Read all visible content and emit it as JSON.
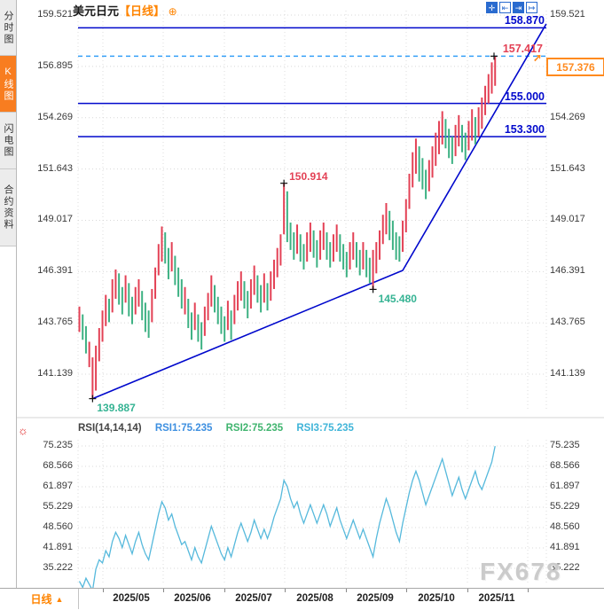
{
  "header": {
    "symbol": "美元日元",
    "period_tag": "【日线】",
    "expand_icon": "⊕",
    "toolbar": [
      {
        "name": "crosshair",
        "glyph": "✛"
      },
      {
        "name": "compress-axis",
        "glyph": "⇤"
      },
      {
        "name": "expand-axis",
        "glyph": "⇥"
      },
      {
        "name": "pan-right",
        "glyph": "↦"
      }
    ]
  },
  "sidebar": {
    "tabs": [
      {
        "label": "分时图",
        "active": false
      },
      {
        "label": "K线图",
        "active": true
      },
      {
        "label": "闪电图",
        "active": false
      },
      {
        "label": "合约资料",
        "active": false
      }
    ]
  },
  "bottom_bar": {
    "period_label": "日线",
    "period_arrow": "▲"
  },
  "watermark": "FX678",
  "colors": {
    "accent_orange": "#ff8400",
    "tab_orange": "#f87d20",
    "line_blue": "#0008cc",
    "dashed_cyan": "#36a0f8",
    "label_red": "#e34155",
    "label_teal": "#35b393",
    "candle_up": "#e34155",
    "candle_down": "#3db183",
    "rsi_line": "#56b9dc",
    "price_box_orange": "#ff8a1e"
  },
  "chart_data": [
    {
      "type": "candlestick",
      "title": "美元日元 日线",
      "y_ticks": [
        159.521,
        156.895,
        154.269,
        151.643,
        149.017,
        146.391,
        143.765,
        141.139
      ],
      "y_ticks_right": [
        159.521,
        154.269,
        151.643,
        149.017,
        146.391,
        143.765,
        141.139
      ],
      "x_ticks": [
        "2025/05",
        "2025/06",
        "2025/07",
        "2025/08",
        "2025/09",
        "2025/10",
        "2025/11"
      ],
      "ylim": [
        140.2,
        159.8
      ],
      "grid": true,
      "hlines": [
        {
          "price": 158.87,
          "label": "158.870",
          "style": "solid",
          "color_role": "blue"
        },
        {
          "price": 157.417,
          "label": "157.417",
          "style": "dashed",
          "color_role": "red"
        },
        {
          "price": 155.0,
          "label": "155.000",
          "style": "solid",
          "color_role": "blue"
        },
        {
          "price": 153.3,
          "label": "153.300",
          "style": "solid",
          "color_role": "blue"
        }
      ],
      "current_price": "157.376",
      "annotations": [
        {
          "label": "150.914",
          "index": 62,
          "price": 150.914,
          "color_role": "red"
        },
        {
          "label": "145.480",
          "index": 89,
          "price": 145.48,
          "color_role": "teal"
        },
        {
          "label": "139.887",
          "index": 4,
          "price": 139.887,
          "color_role": "teal"
        }
      ],
      "trendline_points": [
        {
          "index": 4,
          "price": 139.887
        },
        {
          "index": 98,
          "price": 146.45
        },
        {
          "index": 141.5,
          "price": 159.07
        }
      ],
      "candles_hl": [
        [
          144.6,
          143.3,
          "r"
        ],
        [
          144.2,
          142.9,
          "g"
        ],
        [
          143.6,
          142.2,
          "g"
        ],
        [
          142.8,
          141.5,
          "r"
        ],
        [
          142.0,
          139.887,
          "r"
        ],
        [
          142.6,
          140.3,
          "r"
        ],
        [
          143.5,
          141.8,
          "r"
        ],
        [
          144.4,
          142.8,
          "r"
        ],
        [
          145.2,
          143.6,
          "r"
        ],
        [
          145.0,
          143.8,
          "g"
        ],
        [
          146.0,
          144.3,
          "r"
        ],
        [
          146.5,
          145.0,
          "r"
        ],
        [
          146.3,
          144.7,
          "g"
        ],
        [
          145.6,
          144.2,
          "g"
        ],
        [
          146.2,
          144.8,
          "r"
        ],
        [
          145.8,
          144.1,
          "g"
        ],
        [
          145.1,
          143.7,
          "g"
        ],
        [
          145.6,
          144.2,
          "r"
        ],
        [
          146.0,
          144.6,
          "r"
        ],
        [
          145.4,
          143.9,
          "g"
        ],
        [
          144.8,
          143.3,
          "g"
        ],
        [
          144.4,
          143.0,
          "g"
        ],
        [
          145.5,
          143.8,
          "r"
        ],
        [
          146.6,
          145.0,
          "r"
        ],
        [
          147.8,
          146.2,
          "r"
        ],
        [
          148.7,
          146.9,
          "r"
        ],
        [
          148.4,
          146.8,
          "g"
        ],
        [
          147.6,
          146.0,
          "g"
        ],
        [
          147.9,
          146.4,
          "r"
        ],
        [
          147.2,
          145.7,
          "g"
        ],
        [
          146.6,
          145.1,
          "g"
        ],
        [
          146.0,
          144.5,
          "g"
        ],
        [
          145.6,
          144.2,
          "r"
        ],
        [
          145.0,
          143.5,
          "g"
        ],
        [
          144.3,
          142.9,
          "g"
        ],
        [
          144.8,
          143.4,
          "r"
        ],
        [
          144.2,
          142.8,
          "g"
        ],
        [
          143.8,
          142.4,
          "g"
        ],
        [
          144.6,
          143.1,
          "r"
        ],
        [
          145.3,
          143.9,
          "r"
        ],
        [
          146.2,
          144.6,
          "r"
        ],
        [
          145.7,
          144.3,
          "g"
        ],
        [
          145.1,
          143.7,
          "g"
        ],
        [
          144.6,
          143.2,
          "g"
        ],
        [
          144.1,
          142.8,
          "g"
        ],
        [
          144.9,
          143.4,
          "r"
        ],
        [
          144.4,
          142.9,
          "g"
        ],
        [
          145.2,
          143.7,
          "r"
        ],
        [
          145.9,
          144.4,
          "r"
        ],
        [
          146.4,
          144.9,
          "r"
        ],
        [
          145.9,
          144.5,
          "g"
        ],
        [
          145.4,
          144.0,
          "g"
        ],
        [
          146.0,
          144.5,
          "r"
        ],
        [
          146.7,
          145.2,
          "r"
        ],
        [
          146.2,
          144.8,
          "g"
        ],
        [
          145.7,
          144.3,
          "g"
        ],
        [
          146.3,
          144.8,
          "r"
        ],
        [
          145.8,
          144.4,
          "g"
        ],
        [
          146.4,
          144.9,
          "r"
        ],
        [
          147.0,
          145.5,
          "r"
        ],
        [
          147.6,
          146.1,
          "r"
        ],
        [
          148.3,
          146.7,
          "r"
        ],
        [
          150.914,
          148.3,
          "r"
        ],
        [
          150.5,
          147.9,
          "g"
        ],
        [
          148.9,
          147.5,
          "g"
        ],
        [
          148.4,
          147.0,
          "g"
        ],
        [
          148.8,
          147.3,
          "r"
        ],
        [
          148.3,
          146.9,
          "g"
        ],
        [
          147.8,
          146.5,
          "g"
        ],
        [
          148.4,
          146.9,
          "r"
        ],
        [
          148.9,
          147.4,
          "r"
        ],
        [
          148.5,
          147.1,
          "g"
        ],
        [
          148.0,
          146.6,
          "g"
        ],
        [
          148.5,
          147.0,
          "r"
        ],
        [
          148.9,
          147.5,
          "r"
        ],
        [
          148.4,
          147.0,
          "g"
        ],
        [
          147.9,
          146.6,
          "g"
        ],
        [
          148.3,
          146.9,
          "r"
        ],
        [
          148.8,
          147.4,
          "r"
        ],
        [
          148.3,
          146.9,
          "g"
        ],
        [
          147.8,
          146.5,
          "g"
        ],
        [
          147.4,
          146.1,
          "g"
        ],
        [
          147.9,
          146.5,
          "r"
        ],
        [
          148.4,
          147.0,
          "r"
        ],
        [
          147.9,
          146.6,
          "g"
        ],
        [
          147.5,
          146.2,
          "g"
        ],
        [
          147.9,
          146.5,
          "r"
        ],
        [
          147.5,
          146.1,
          "g"
        ],
        [
          147.1,
          145.8,
          "g"
        ],
        [
          147.5,
          145.48,
          "r"
        ],
        [
          147.9,
          146.3,
          "r"
        ],
        [
          148.5,
          147.0,
          "r"
        ],
        [
          149.3,
          147.8,
          "r"
        ],
        [
          149.9,
          148.3,
          "r"
        ],
        [
          149.5,
          148.0,
          "g"
        ],
        [
          149.0,
          147.5,
          "g"
        ],
        [
          148.4,
          147.0,
          "g"
        ],
        [
          148.2,
          146.9,
          "g"
        ],
        [
          149.0,
          147.4,
          "r"
        ],
        [
          150.1,
          148.4,
          "r"
        ],
        [
          151.4,
          149.6,
          "r"
        ],
        [
          152.5,
          150.7,
          "r"
        ],
        [
          153.2,
          151.4,
          "r"
        ],
        [
          152.8,
          151.0,
          "g"
        ],
        [
          152.2,
          150.6,
          "g"
        ],
        [
          151.6,
          150.1,
          "g"
        ],
        [
          152.1,
          150.5,
          "r"
        ],
        [
          152.8,
          151.2,
          "r"
        ],
        [
          153.5,
          151.8,
          "r"
        ],
        [
          154.1,
          152.4,
          "r"
        ],
        [
          154.6,
          152.9,
          "r"
        ],
        [
          154.2,
          152.7,
          "g"
        ],
        [
          153.7,
          152.2,
          "g"
        ],
        [
          153.3,
          151.9,
          "g"
        ],
        [
          153.9,
          152.3,
          "r"
        ],
        [
          154.4,
          152.8,
          "r"
        ],
        [
          153.9,
          152.5,
          "g"
        ],
        [
          153.5,
          152.1,
          "g"
        ],
        [
          154.1,
          152.6,
          "r"
        ],
        [
          154.7,
          153.1,
          "r"
        ],
        [
          154.3,
          152.9,
          "g"
        ],
        [
          154.8,
          153.3,
          "r"
        ],
        [
          155.3,
          153.7,
          "r"
        ],
        [
          155.9,
          154.4,
          "r"
        ],
        [
          156.5,
          155.0,
          "r"
        ],
        [
          157.1,
          155.5,
          "r"
        ],
        [
          157.417,
          155.9,
          "r"
        ]
      ]
    },
    {
      "type": "line",
      "title": "RSI(14,14,14)",
      "legend": [
        {
          "label": "RSI1:75.235",
          "color": "#3d8fe0"
        },
        {
          "label": "RSI2:75.235",
          "color": "#3fb46e"
        },
        {
          "label": "RSI3:75.235",
          "color": "#3fb4d8"
        }
      ],
      "y_ticks": [
        75.235,
        68.566,
        61.897,
        55.229,
        48.56,
        41.891,
        35.222
      ],
      "ylim": [
        28,
        78
      ],
      "values": [
        31,
        29,
        32,
        30,
        28,
        35,
        38,
        37,
        41,
        39,
        44,
        47,
        45,
        42,
        46,
        43,
        40,
        44,
        47,
        43,
        40,
        38,
        43,
        48,
        53,
        57,
        55,
        51,
        53,
        49,
        46,
        43,
        44,
        41,
        38,
        42,
        39,
        37,
        41,
        45,
        49,
        46,
        43,
        40,
        38,
        42,
        39,
        43,
        47,
        50,
        47,
        44,
        47,
        51,
        48,
        45,
        48,
        45,
        48,
        52,
        55,
        58,
        64,
        62,
        58,
        55,
        57,
        53,
        50,
        53,
        56,
        53,
        50,
        53,
        56,
        53,
        49,
        52,
        55,
        51,
        48,
        45,
        48,
        51,
        48,
        45,
        48,
        45,
        42,
        39,
        45,
        50,
        54,
        58,
        55,
        51,
        47,
        44,
        50,
        55,
        60,
        64,
        67,
        64,
        60,
        56,
        59,
        62,
        65,
        68,
        71,
        67,
        63,
        59,
        62,
        65,
        61,
        58,
        61,
        64,
        67,
        63,
        61,
        64,
        67,
        70,
        75.2
      ]
    }
  ]
}
